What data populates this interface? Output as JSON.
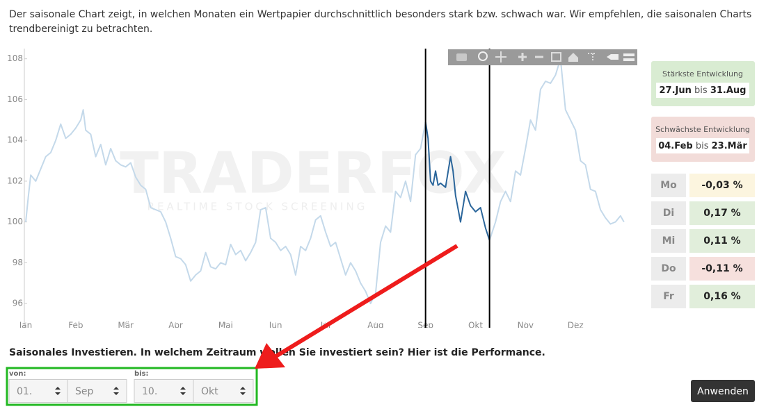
{
  "intro": [
    "Der saisonale Chart zeigt, in welchen Monaten ein Wertpapier durchschnittlich besonders stark bzw. schwach war. Wir empfehlen, die saisonalen Charts",
    "trendbereinigt zu betrachten."
  ],
  "chart_data": {
    "type": "line",
    "watermark": "TRADERFOX",
    "watermark_sub": "REALTIME STOCK SCREENING",
    "xlim": [
      0,
      12
    ],
    "xticks": [
      {
        "value": 0,
        "label": "Jan"
      },
      {
        "value": 1,
        "label": "Feb"
      },
      {
        "value": 2,
        "label": "Mär"
      },
      {
        "value": 3,
        "label": "Apr"
      },
      {
        "value": 4,
        "label": "Mai"
      },
      {
        "value": 5,
        "label": "Jun"
      },
      {
        "value": 6,
        "label": "Jul"
      },
      {
        "value": 7,
        "label": "Aug"
      },
      {
        "value": 8,
        "label": "Sep"
      },
      {
        "value": 9,
        "label": "Okt"
      },
      {
        "value": 10,
        "label": "Nov"
      },
      {
        "value": 11,
        "label": "Dez"
      }
    ],
    "ylim": [
      95.05,
      108.5
    ],
    "yticks": [
      96,
      98,
      100,
      102,
      104,
      106,
      108
    ],
    "grid": false,
    "selection": [
      8,
      9.28
    ],
    "series": [
      {
        "color": "#c4d9ea",
        "x": [
          0,
          0.05,
          0.1,
          0.2,
          0.3,
          0.4,
          0.5,
          0.6,
          0.7,
          0.8,
          0.9,
          1.0,
          1.1,
          1.15,
          1.2,
          1.3,
          1.4,
          1.5,
          1.6,
          1.7,
          1.8,
          1.9,
          2.0,
          2.1,
          2.2,
          2.3,
          2.4,
          2.5,
          2.6,
          2.7,
          2.8,
          2.9,
          3.0,
          3.1,
          3.2,
          3.3,
          3.4,
          3.5,
          3.6,
          3.7,
          3.8,
          3.9,
          4.0,
          4.1,
          4.2,
          4.3,
          4.4,
          4.5,
          4.6,
          4.7,
          4.8,
          4.9,
          5.0,
          5.1,
          5.2,
          5.3,
          5.4,
          5.5,
          5.6,
          5.7,
          5.8,
          5.9,
          6.0,
          6.1,
          6.2,
          6.3,
          6.4,
          6.5,
          6.6,
          6.7,
          6.8,
          6.9,
          7.0,
          7.1,
          7.2,
          7.3,
          7.4,
          7.5,
          7.6,
          7.7,
          7.8,
          7.9,
          8.0,
          8.6,
          9.28,
          9.4,
          9.5,
          9.6,
          9.7,
          9.8,
          9.9,
          10.0,
          10.1,
          10.2,
          10.3,
          10.4,
          10.5,
          10.6,
          10.7,
          10.8,
          10.9,
          11.0,
          11.1,
          11.2,
          11.3,
          11.4,
          11.5,
          11.6,
          11.7,
          11.8,
          11.9,
          11.97
        ],
        "values": [
          100,
          101.2,
          102.3,
          102.0,
          102.6,
          103.2,
          103.4,
          104.0,
          104.8,
          104.1,
          104.3,
          104.6,
          105.0,
          105.5,
          104.5,
          104.3,
          103.2,
          103.8,
          102.8,
          103.6,
          103.0,
          102.8,
          102.7,
          102.9,
          102.2,
          101.8,
          101.6,
          100.7,
          100.6,
          100.5,
          100.0,
          99.2,
          98.3,
          98.2,
          97.9,
          97.1,
          97.4,
          97.6,
          98.5,
          97.8,
          97.7,
          98.0,
          97.9,
          98.9,
          98.4,
          98.6,
          98.1,
          98.5,
          99.0,
          100.6,
          100.7,
          99.2,
          99.0,
          98.6,
          98.8,
          98.4,
          97.4,
          98.8,
          98.6,
          99.2,
          100.1,
          100.3,
          99.5,
          98.8,
          99.0,
          98.2,
          97.4,
          98.0,
          97.6,
          97.0,
          96.6,
          96.0,
          96.5,
          99.0,
          99.8,
          99.5,
          101.5,
          101.2,
          102.0,
          101.0,
          103.3,
          103.6,
          104.9,
          null,
          99.1,
          100.0,
          101.0,
          101.5,
          101.0,
          102.5,
          102.3,
          103.6,
          105.0,
          104.5,
          106.5,
          106.9,
          106.8,
          107.2,
          108.0,
          105.5,
          105.0,
          104.5,
          103.0,
          102.8,
          101.6,
          101.5,
          100.6,
          100.2,
          99.9,
          100.0,
          100.3,
          100.0
        ]
      },
      {
        "color": "#2b669b",
        "x": [
          8.0,
          8.05,
          8.1,
          8.15,
          8.2,
          8.25,
          8.3,
          8.4,
          8.5,
          8.55,
          8.6,
          8.7,
          8.8,
          8.9,
          9.0,
          9.1,
          9.2,
          9.28
        ],
        "values": [
          104.9,
          104.1,
          102.0,
          101.8,
          102.5,
          101.8,
          101.9,
          101.7,
          103.2,
          102.5,
          101.3,
          100.0,
          101.5,
          100.8,
          100.5,
          100.7,
          99.7,
          99.1
        ]
      }
    ]
  },
  "strongest": {
    "title": "Stärkste Entwicklung",
    "from": "27.Jun",
    "sep": "bis",
    "to": "31.Aug"
  },
  "weakest": {
    "title": "Schwächste Entwicklung",
    "from": "04.Feb",
    "sep": "bis",
    "to": "23.Mär"
  },
  "weekdays": [
    {
      "day": "Mo",
      "value": "-0,03 %",
      "color": "#fcf5df"
    },
    {
      "day": "Di",
      "value": "0,17 %",
      "color": "#e1eedb"
    },
    {
      "day": "Mi",
      "value": "0,11 %",
      "color": "#e1eedb"
    },
    {
      "day": "Do",
      "value": "-0,11 %",
      "color": "#f6e0dd"
    },
    {
      "day": "Fr",
      "value": "0,16 %",
      "color": "#e1eedb"
    }
  ],
  "form": {
    "heading": "Saisonales Investieren. In welchem Zeitraum wollen Sie investiert sein? Hier ist die Performance.",
    "from_label": "von:",
    "from_day": "01.",
    "from_month": "Sep",
    "to_label": "bis:",
    "to_day": "10.",
    "to_month": "Okt",
    "button": "Anwenden"
  }
}
